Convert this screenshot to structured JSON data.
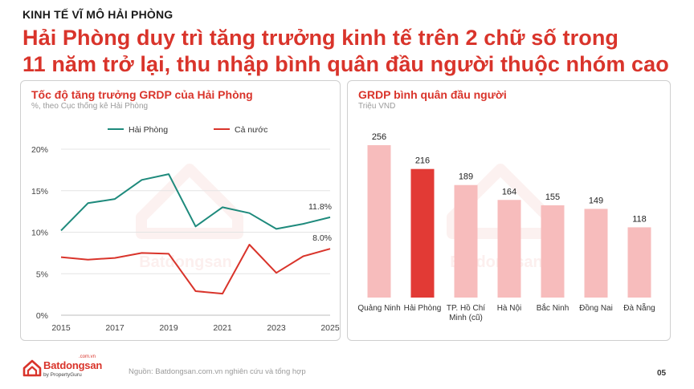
{
  "kicker": "KINH TẾ VĨ MÔ HẢI PHÒNG",
  "headline": {
    "line1": "Hải Phòng duy trì tăng trưởng kinh tế trên 2 chữ số trong",
    "line2": "11 năm trở lại, thu nhập bình quân đầu người thuộc nhóm cao"
  },
  "colors": {
    "accent": "#d9342b",
    "teal": "#1e8a7c",
    "bar_light": "#f7bcbc",
    "bar_highlight": "#e23a35"
  },
  "chart_data": [
    {
      "type": "line",
      "title": "Tốc độ tăng trưởng GRDP của Hải Phòng",
      "subtitle": "%, theo Cục thống kê Hải Phòng",
      "x": [
        2015,
        2016,
        2017,
        2018,
        2019,
        2020,
        2021,
        2022,
        2023,
        2024,
        2025
      ],
      "x_ticks": [
        "2015",
        "2017",
        "2019",
        "2021",
        "2023",
        "2025"
      ],
      "y_ticks": [
        "0%",
        "5%",
        "10%",
        "15%",
        "20%"
      ],
      "ylim": [
        0,
        20
      ],
      "grid": true,
      "legend_position": "top",
      "series": [
        {
          "name": "Hải Phòng",
          "color": "#1e8a7c",
          "values": [
            10.2,
            13.5,
            14.0,
            16.3,
            17.0,
            10.7,
            13.0,
            12.3,
            10.4,
            11.0,
            11.8
          ],
          "end_label": "11.8%"
        },
        {
          "name": "Cả nước",
          "color": "#d9342b",
          "values": [
            7.0,
            6.7,
            6.9,
            7.5,
            7.4,
            2.9,
            2.6,
            8.5,
            5.1,
            7.1,
            8.0
          ],
          "end_label": "8.0%"
        }
      ]
    },
    {
      "type": "bar",
      "title": "GRDP bình quân đầu người",
      "subtitle": "Triệu VND",
      "categories": [
        "Quảng Ninh",
        "Hải Phòng",
        "TP. Hồ Chí|Minh (cũ)",
        "Hà Nội",
        "Bắc Ninh",
        "Đồng Nai",
        "Đà Nẵng"
      ],
      "values": [
        256,
        216,
        189,
        164,
        155,
        149,
        118
      ],
      "labels": [
        "256",
        "216",
        "189",
        "164",
        "155",
        "149",
        "118"
      ],
      "highlight_index": 1,
      "ylim": [
        0,
        256
      ]
    }
  ],
  "footer": {
    "logo_name": "Batdongsan",
    "logo_dotcom": ".com.vn",
    "logo_by": "by PropertyGuru",
    "source": "Nguồn: Batdongsan.com.vn nghiên cứu và tổng hợp",
    "page_number": "05"
  }
}
